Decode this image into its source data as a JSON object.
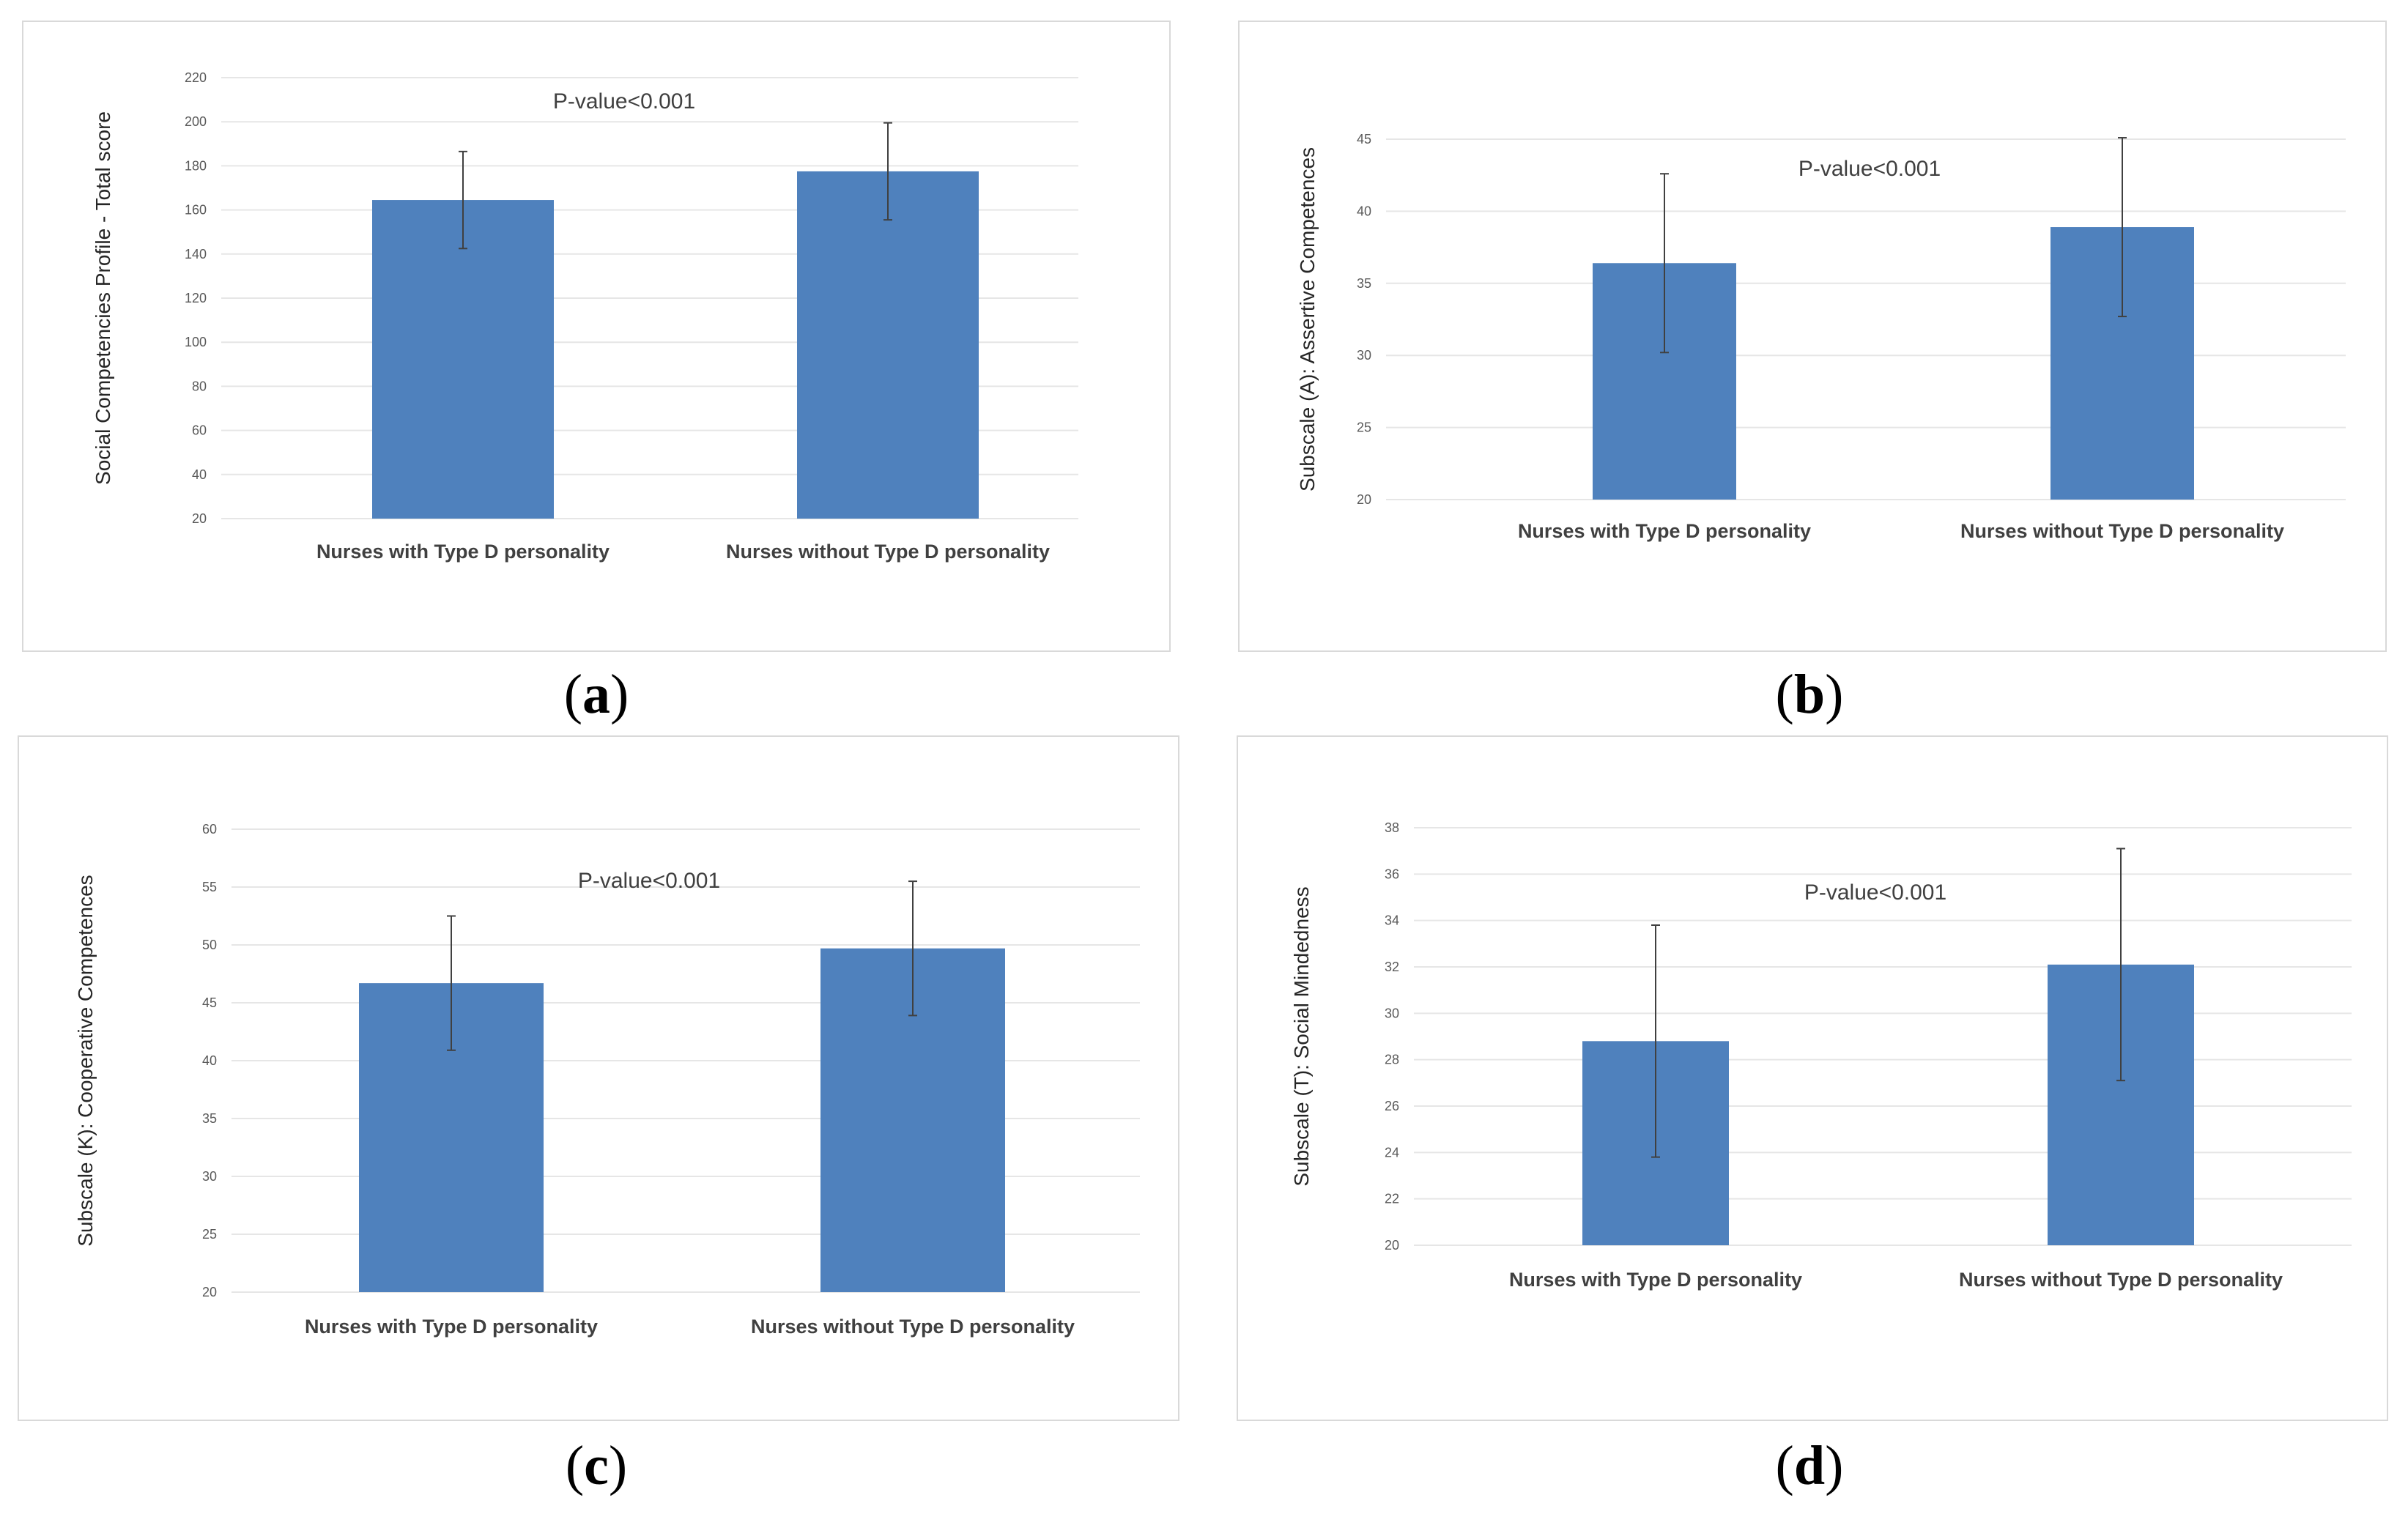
{
  "chart_data": [
    {
      "type": "bar",
      "panel_label": "a",
      "categories": [
        "Nurses with Type D personality",
        "Nurses without Type D personality"
      ],
      "values": [
        164.5,
        177.5
      ],
      "errors": [
        22,
        22
      ],
      "ylabel": "Social Competencies Profile  -  Total score",
      "annotation": "P-value<0.001",
      "ylim": [
        20,
        220
      ],
      "yticks": [
        20,
        40,
        60,
        80,
        100,
        120,
        140,
        160,
        180,
        200,
        220
      ],
      "color": "#4f81bd"
    },
    {
      "type": "bar",
      "panel_label": "b",
      "categories": [
        "Nurses with Type D personality",
        "Nurses without Type D personality"
      ],
      "values": [
        36.4,
        38.9
      ],
      "errors": [
        6.2,
        6.2
      ],
      "ylabel": "Subscale (A): Assertive Competences",
      "annotation": "P-value<0.001",
      "ylim": [
        20,
        45
      ],
      "yticks": [
        20,
        25,
        30,
        35,
        40,
        45
      ],
      "color": "#4f81bd"
    },
    {
      "type": "bar",
      "panel_label": "c",
      "categories": [
        "Nurses with Type D personality",
        "Nurses without Type D personality"
      ],
      "values": [
        46.7,
        49.7
      ],
      "errors": [
        5.8,
        5.8
      ],
      "ylabel": "Subscale (K): Cooperative Competences",
      "annotation": "P-value<0.001",
      "ylim": [
        20,
        60
      ],
      "yticks": [
        20,
        25,
        30,
        35,
        40,
        45,
        50,
        55,
        60
      ],
      "color": "#4f81bd"
    },
    {
      "type": "bar",
      "panel_label": "d",
      "categories": [
        "Nurses with Type D personality",
        "Nurses without Type D personality"
      ],
      "values": [
        28.8,
        32.1
      ],
      "errors": [
        5.0,
        5.0
      ],
      "ylabel": "Subscale (T): Social Mindedness",
      "annotation": "P-value<0.001",
      "ylim": [
        20,
        38
      ],
      "yticks": [
        20,
        22,
        24,
        26,
        28,
        30,
        32,
        34,
        36,
        38
      ],
      "color": "#4f81bd"
    }
  ]
}
